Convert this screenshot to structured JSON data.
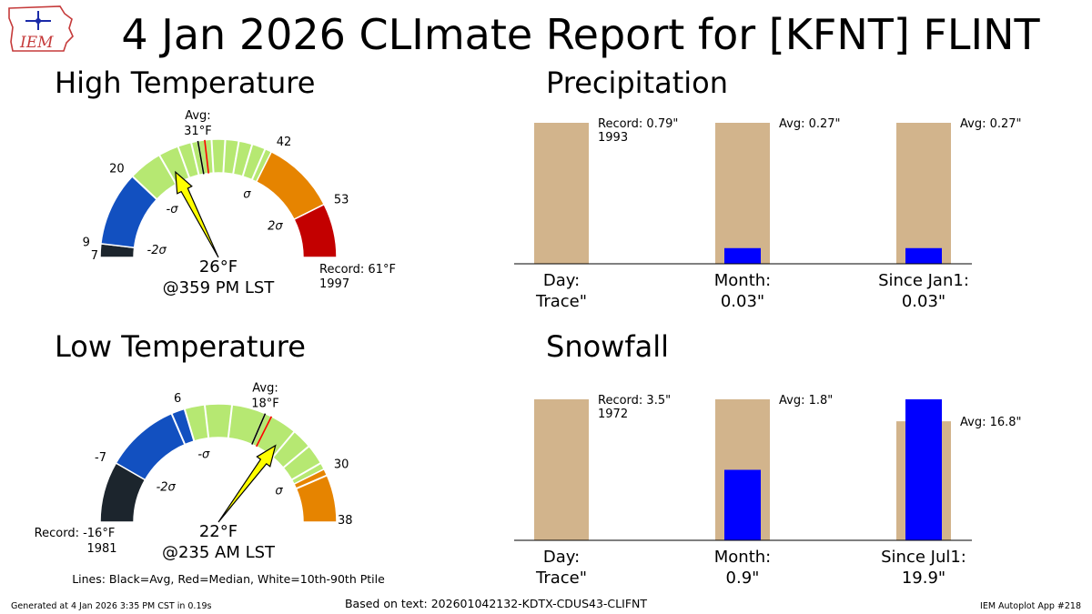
{
  "header": {
    "title": "4 Jan 2026 CLImate Report for [KFNT] FLINT",
    "logo_text": "IEM"
  },
  "footer": {
    "generated": "Generated at 4 Jan 2026 3:35 PM CST in 0.19s",
    "based_on": "Based on text: 202601042132-KDTX-CDUS43-CLIFNT",
    "app": "IEM Autoplot App #218",
    "lines_legend": "Lines: Black=Avg, Red=Median, White=10th-90th Ptile"
  },
  "colors": {
    "dark": "#1c252d",
    "blue": "#1250c0",
    "green": "#b6e872",
    "orange": "#e68400",
    "red": "#c30000",
    "needle": "#ffff00",
    "tan": "#d2b48c",
    "obs": "#0000ff",
    "median": "#ff0000",
    "avg": "#000000"
  },
  "chart_data": [
    {
      "id": "high",
      "type": "gauge",
      "title": "High Temperature",
      "range": [
        7,
        61
      ],
      "bands": [
        {
          "from": 7,
          "to": 9,
          "color": "dark"
        },
        {
          "from": 9,
          "to": 20,
          "color": "blue"
        },
        {
          "from": 20,
          "to": 42,
          "color": "green"
        },
        {
          "from": 42,
          "to": 53,
          "color": "orange"
        },
        {
          "from": 53,
          "to": 61,
          "color": "red"
        }
      ],
      "band_labels": [
        "7",
        "9",
        "20",
        "42",
        "53"
      ],
      "sigma_labels": [
        {
          "value": 9,
          "text": "-2σ"
        },
        {
          "value": 20,
          "text": "-σ"
        },
        {
          "value": 42,
          "text": "σ"
        },
        {
          "value": 53,
          "text": "2σ"
        }
      ],
      "white_lines": [
        20,
        25,
        28,
        30,
        31,
        33,
        35,
        37,
        39,
        41
      ],
      "avg": 31,
      "median": 32,
      "avg_label": [
        "Avg:",
        "31°F"
      ],
      "observed": 26,
      "observed_label": "26°F",
      "time_label": "@359 PM LST",
      "record_label": [
        "Record: 61°F",
        "1997"
      ],
      "record_side": "right"
    },
    {
      "id": "low",
      "type": "gauge",
      "title": "Low Temperature",
      "range": [
        -16,
        38
      ],
      "bands": [
        {
          "from": -16,
          "to": -7,
          "color": "dark"
        },
        {
          "from": -7,
          "to": 6,
          "color": "blue"
        },
        {
          "from": 6,
          "to": 30,
          "color": "green"
        },
        {
          "from": 30,
          "to": 38,
          "color": "orange"
        }
      ],
      "band_labels": [
        "-7",
        "6",
        "30",
        "38"
      ],
      "sigma_labels": [
        {
          "value": -7,
          "text": "-2σ"
        },
        {
          "value": 6,
          "text": "-σ"
        },
        {
          "value": 30,
          "text": "σ"
        }
      ],
      "white_lines": [
        4,
        6,
        9,
        13,
        18,
        23,
        26,
        29,
        31
      ],
      "avg": 18,
      "median": 19,
      "avg_label": [
        "Avg:",
        "18°F"
      ],
      "observed": 22,
      "observed_label": "22°F",
      "time_label": "@235 AM LST",
      "record_label": [
        "Record: -16°F",
        "1981"
      ],
      "record_side": "left"
    },
    {
      "id": "precip",
      "type": "bar",
      "title": "Precipitation",
      "categories": [
        {
          "label": "Day:",
          "value_label": "Trace\"",
          "ref": 0.79,
          "obs": 0.0,
          "ann": [
            "Record: 0.79\"",
            "1993"
          ]
        },
        {
          "label": "Month:",
          "value_label": "0.03\"",
          "ref": 0.27,
          "obs": 0.03,
          "ann": [
            "Avg: 0.27\""
          ]
        },
        {
          "label": "Since Jan1:",
          "value_label": "0.03\"",
          "ref": 0.27,
          "obs": 0.03,
          "ann": [
            "Avg: 0.27\""
          ]
        }
      ]
    },
    {
      "id": "snow",
      "type": "bar",
      "title": "Snowfall",
      "categories": [
        {
          "label": "Day:",
          "value_label": "Trace\"",
          "ref": 3.5,
          "obs": 0.0,
          "ann": [
            "Record: 3.5\"",
            "1972"
          ]
        },
        {
          "label": "Month:",
          "value_label": "0.9\"",
          "ref": 1.8,
          "obs": 0.9,
          "ann": [
            "Avg: 1.8\""
          ]
        },
        {
          "label": "Since Jul1:",
          "value_label": "19.9\"",
          "ref": 16.8,
          "obs": 19.9,
          "ann": [
            "Avg: 16.8\""
          ]
        }
      ]
    }
  ]
}
